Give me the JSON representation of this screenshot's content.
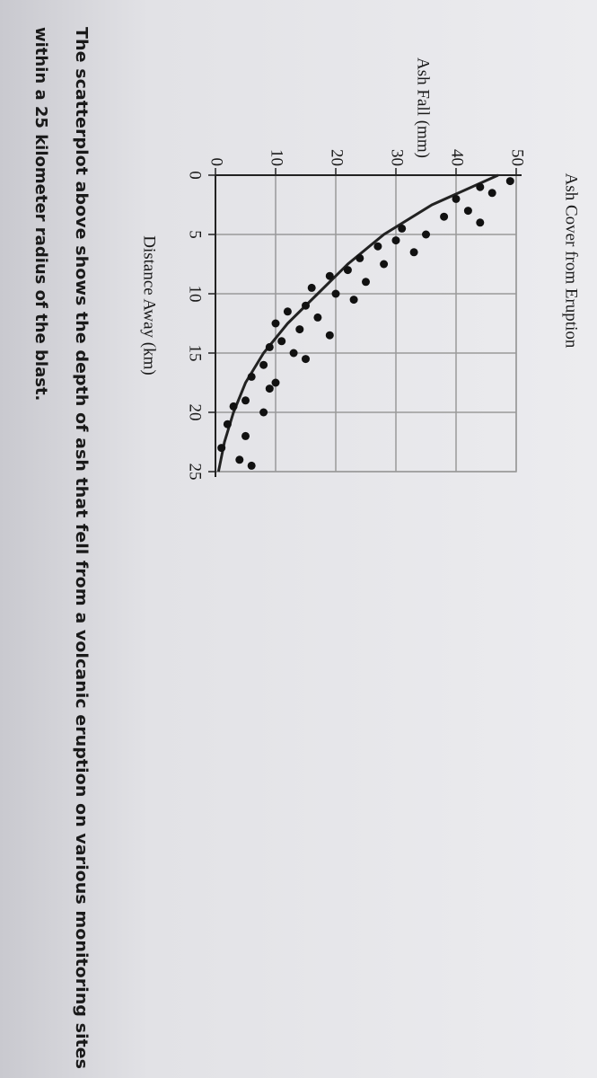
{
  "chart_data": {
    "type": "scatter",
    "title": "Ash Cover from Eruption",
    "x_label": "Distance Away (km)",
    "y_label": "Ash Fall (mm)",
    "xlim": [
      0,
      25
    ],
    "ylim": [
      0,
      50
    ],
    "xticks": [
      0,
      5,
      10,
      15,
      20,
      25
    ],
    "yticks": [
      0,
      10,
      20,
      30,
      40,
      50
    ],
    "grid": true,
    "color": "#111111",
    "x": [
      0.5,
      1,
      1.5,
      2,
      3,
      3.5,
      4,
      4.5,
      5,
      5.5,
      6,
      6.5,
      7,
      7.5,
      8,
      8.5,
      9,
      9.5,
      10,
      10.5,
      11,
      11.5,
      12,
      12.5,
      13,
      13.5,
      14,
      14.5,
      15,
      15.5,
      16,
      17,
      17.5,
      18,
      19,
      19.5,
      20,
      21,
      22,
      23,
      24,
      24.5
    ],
    "values": [
      49,
      44,
      46,
      40,
      42,
      38,
      44,
      31,
      35,
      30,
      27,
      33,
      24,
      28,
      22,
      19,
      25,
      16,
      20,
      23,
      15,
      12,
      17,
      10,
      14,
      19,
      11,
      9,
      13,
      15,
      8,
      6,
      10,
      9,
      5,
      3,
      8,
      2,
      5,
      1,
      4,
      6
    ],
    "curve": {
      "x": [
        0,
        2.5,
        5,
        7.5,
        10,
        12.5,
        15,
        17.5,
        20,
        22.5,
        25
      ],
      "values": [
        47,
        36,
        28,
        22,
        17,
        12,
        8,
        5,
        3,
        1.5,
        0.5
      ]
    }
  },
  "caption": [
    "The scatterplot above shows the depth of ash that fell from a volcanic eruption on various monitoring sites",
    "within a 25 kilometer radius of the blast."
  ]
}
